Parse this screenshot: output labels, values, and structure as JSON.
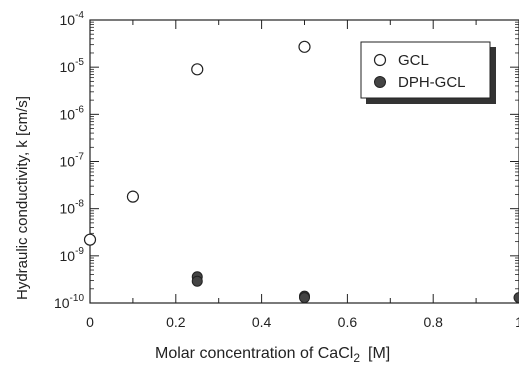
{
  "chart_data": {
    "type": "scatter",
    "xlabel": "Molar concentration of CaCl",
    "xlabel_subscript": "2",
    "xlabel_unit": "[M]",
    "ylabel": "Hydraulic conductivity, k   [cm/s]",
    "xlim": [
      0,
      1
    ],
    "ylim": [
      1e-10,
      0.0001
    ],
    "y_scale": "log",
    "x_ticks": [
      "0",
      "0.2",
      "0.4",
      "0.6",
      "0.8",
      "1"
    ],
    "y_ticks": [
      {
        "mantissa": "10",
        "exp": "-4"
      },
      {
        "mantissa": "10",
        "exp": "-5"
      },
      {
        "mantissa": "10",
        "exp": "-6"
      },
      {
        "mantissa": "10",
        "exp": "-7"
      },
      {
        "mantissa": "10",
        "exp": "-8"
      },
      {
        "mantissa": "10",
        "exp": "-9"
      },
      {
        "mantissa": "10",
        "exp": "-10"
      }
    ],
    "legend_position": "top-right",
    "series": [
      {
        "name": "GCL",
        "marker": "open-circle",
        "points": [
          {
            "x": 0,
            "y": 2.2e-09
          },
          {
            "x": 0.1,
            "y": 1.8e-08
          },
          {
            "x": 0.25,
            "y": 9e-06
          },
          {
            "x": 0.5,
            "y": 2.7e-05
          }
        ]
      },
      {
        "name": "DPH-GCL",
        "marker": "filled-circle",
        "points": [
          {
            "x": 0.25,
            "y": 3.6e-10
          },
          {
            "x": 0.25,
            "y": 2.9e-10
          },
          {
            "x": 0.5,
            "y": 1.4e-10
          },
          {
            "x": 0.5,
            "y": 1.3e-10
          },
          {
            "x": 1,
            "y": 1.3e-10
          }
        ]
      }
    ],
    "colors": {
      "axis": "#222222",
      "marker_fill": "#444444",
      "legend_shadow": "#333333"
    }
  }
}
